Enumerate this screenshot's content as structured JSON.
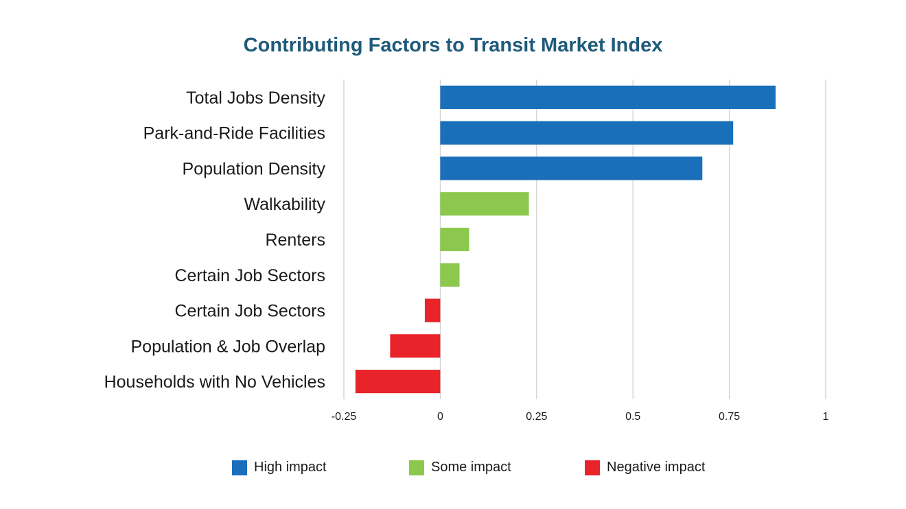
{
  "chart_data": {
    "type": "bar",
    "orientation": "horizontal",
    "title": "Contributing Factors to Transit Market Index",
    "categories": [
      "Total Jobs Density",
      "Park-and-Ride Facilities",
      "Population Density",
      "Walkability",
      "Renters",
      "Certain Job Sectors",
      "Certain Job Sectors",
      "Population & Job Overlap",
      "Households with No Vehicles"
    ],
    "values": [
      0.87,
      0.76,
      0.68,
      0.23,
      0.075,
      0.05,
      -0.04,
      -0.13,
      -0.22
    ],
    "groups": [
      "High impact",
      "High impact",
      "High impact",
      "Some impact",
      "Some impact",
      "Some impact",
      "Negative impact",
      "Negative impact",
      "Negative impact"
    ],
    "xlim": [
      -0.25,
      1
    ],
    "xticks": [
      -0.25,
      0,
      0.25,
      0.5,
      0.75,
      1
    ],
    "xtick_labels": [
      "-0.25",
      "0",
      "0.25",
      "0.5",
      "0.75",
      "1"
    ],
    "grid": true,
    "legend_position": "bottom",
    "legend": [
      {
        "label": "High impact",
        "color": "#1a6fba"
      },
      {
        "label": "Some impact",
        "color": "#8dc84e"
      },
      {
        "label": "Negative impact",
        "color": "#e8232a"
      }
    ],
    "colors": {
      "High impact": "#1a6fba",
      "Some impact": "#8dc84e",
      "Negative impact": "#e8232a"
    }
  }
}
